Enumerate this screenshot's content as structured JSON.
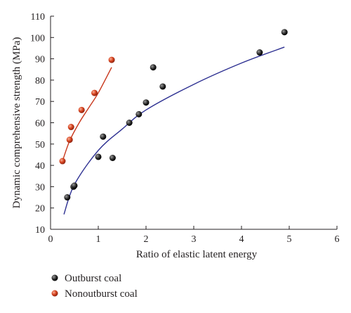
{
  "chart_data": {
    "type": "scatter",
    "title": "",
    "xlabel": "Ratio of elastic latent energy",
    "ylabel": "Dynamic comprehensive strength (MPa)",
    "xlim": [
      0,
      6
    ],
    "ylim": [
      10,
      110
    ],
    "xticks": [
      0,
      1,
      2,
      3,
      4,
      5,
      6
    ],
    "yticks": [
      10,
      20,
      30,
      40,
      50,
      60,
      70,
      80,
      90,
      100,
      110
    ],
    "grid": false,
    "legend_position": "bottom-left",
    "series": [
      {
        "name": "Outburst coal",
        "color": "#1a1a1a",
        "fit_color": "#2e3192",
        "x": [
          0.35,
          0.48,
          0.5,
          1.0,
          1.1,
          1.3,
          1.65,
          1.85,
          2.0,
          2.15,
          2.35,
          4.38,
          4.9
        ],
        "y": [
          25,
          30,
          30.5,
          44,
          53.5,
          43.5,
          60,
          64,
          69.5,
          86,
          77,
          93,
          102.5
        ],
        "fit": {
          "x_range": [
            0.28,
            4.9
          ],
          "points": [
            [
              0.28,
              17
            ],
            [
              0.5,
              31
            ],
            [
              1.0,
              47
            ],
            [
              1.5,
              57
            ],
            [
              2.0,
              66
            ],
            [
              3.0,
              78
            ],
            [
              4.0,
              88
            ],
            [
              4.9,
              95.5
            ]
          ]
        }
      },
      {
        "name": "Nonoutburst coal",
        "color": "#c8371c",
        "fit_color": "#c8371c",
        "x": [
          0.25,
          0.4,
          0.43,
          0.65,
          0.92,
          1.28
        ],
        "y": [
          42,
          52,
          58,
          66,
          74,
          89.5
        ],
        "fit": {
          "x_range": [
            0.25,
            1.28
          ],
          "points": [
            [
              0.25,
              42
            ],
            [
              0.4,
              51.5
            ],
            [
              0.6,
              60
            ],
            [
              0.8,
              67
            ],
            [
              1.0,
              74
            ],
            [
              1.28,
              86
            ]
          ]
        }
      }
    ]
  }
}
